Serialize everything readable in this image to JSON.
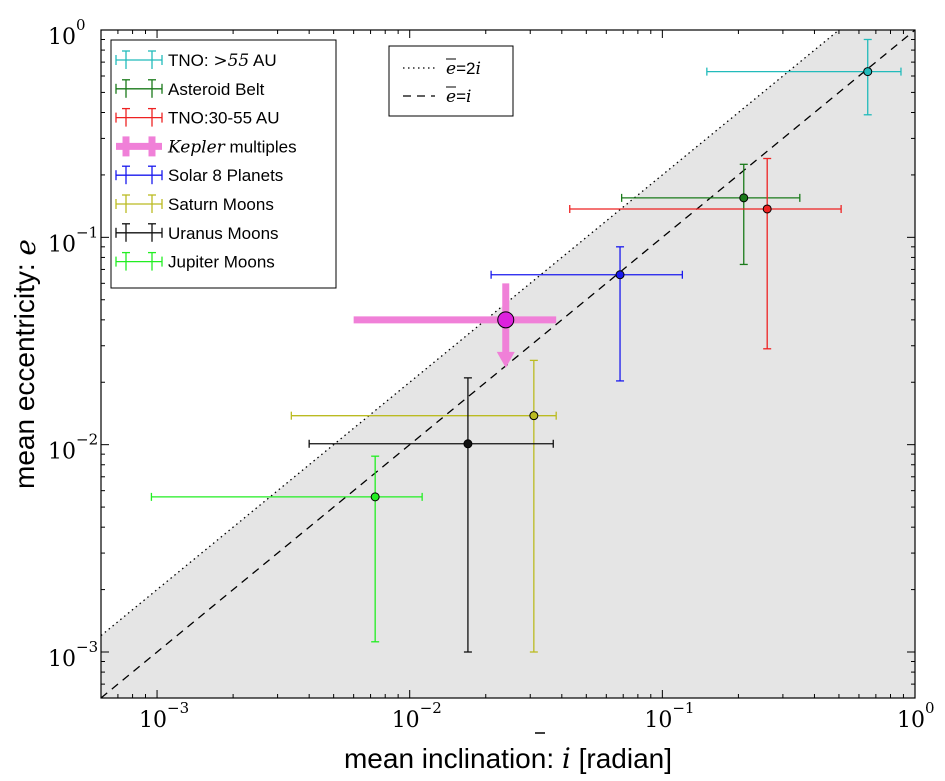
{
  "chart_data": {
    "type": "scatter",
    "x_scale": "log",
    "y_scale": "log",
    "xlim": [
      0.0006,
      1.0
    ],
    "ylim": [
      0.0006,
      1.0
    ],
    "xlabel_prefix": "mean inclination: ",
    "xlabel_symbol": "i",
    "xlabel_suffix": " [radian]",
    "ylabel_prefix": "mean eccentricity: ",
    "ylabel_symbol": "e",
    "x_ticks": [
      {
        "value": 0.001,
        "base": "10",
        "exp": "−3"
      },
      {
        "value": 0.01,
        "base": "10",
        "exp": "−2"
      },
      {
        "value": 0.1,
        "base": "10",
        "exp": "−1"
      },
      {
        "value": 1.0,
        "base": "10",
        "exp": "0"
      }
    ],
    "y_ticks": [
      {
        "value": 0.001,
        "base": "10",
        "exp": "−3"
      },
      {
        "value": 0.01,
        "base": "10",
        "exp": "−2"
      },
      {
        "value": 0.1,
        "base": "10",
        "exp": "−1"
      },
      {
        "value": 1.0,
        "base": "10",
        "exp": "0"
      }
    ],
    "shaded_region": "below e = 2i",
    "lines": [
      {
        "name": "e = 2i",
        "ratio": 2,
        "style": "dotted"
      },
      {
        "name": "e = i",
        "ratio": 1,
        "style": "dashed"
      }
    ],
    "lines_legend": {
      "position": "top-center",
      "entries": [
        {
          "style": "dotted",
          "lhs": "e",
          "mid": "=2",
          "rhs": "i"
        },
        {
          "style": "dashed",
          "lhs": "e",
          "mid": "=",
          "rhs": "i"
        }
      ]
    },
    "legend_position": "top-left",
    "series": [
      {
        "name": "TNO: >55 AU",
        "prefix": "TNO: ",
        "math": ">55",
        "suffix": " AU",
        "color": "#22bbbb",
        "x": 0.65,
        "y": 0.63,
        "x_err": [
          0.15,
          0.88
        ],
        "y_err": [
          0.39,
          0.9
        ],
        "upper_limit": false
      },
      {
        "name": "Asteroid Belt",
        "color": "#1a7a1a",
        "x": 0.21,
        "y": 0.155,
        "x_err": [
          0.069,
          0.35
        ],
        "y_err": [
          0.074,
          0.225
        ],
        "upper_limit": false
      },
      {
        "name": "TNO:30-55 AU",
        "color": "#ee2222",
        "x": 0.26,
        "y": 0.137,
        "x_err": [
          0.043,
          0.51
        ],
        "y_err": [
          0.029,
          0.24
        ],
        "upper_limit": false
      },
      {
        "name": "Kepler multiples",
        "italic": "Kepler",
        "suffix": " multiples",
        "color": "#dd22dd",
        "x": 0.024,
        "y": 0.04,
        "x_err": [
          0.006,
          0.038
        ],
        "y_err": [
          0.024,
          0.06
        ],
        "upper_limit": true,
        "bar_color": "#f080d8"
      },
      {
        "name": "Solar 8 Planets",
        "color": "#1a1aee",
        "x": 0.068,
        "y": 0.066,
        "x_err": [
          0.021,
          0.12
        ],
        "y_err": [
          0.0203,
          0.09
        ],
        "upper_limit": false
      },
      {
        "name": "Saturn Moons",
        "color": "#bbbb22",
        "x": 0.031,
        "y": 0.0138,
        "x_err": [
          0.0034,
          0.038
        ],
        "y_err": [
          0.001,
          0.0255
        ],
        "upper_limit": false
      },
      {
        "name": "Uranus Moons",
        "color": "#111111",
        "x": 0.017,
        "y": 0.0101,
        "x_err": [
          0.004,
          0.037
        ],
        "y_err": [
          0.001,
          0.021
        ],
        "upper_limit": false
      },
      {
        "name": "Jupiter Moons",
        "color": "#22ee22",
        "x": 0.0073,
        "y": 0.0056,
        "x_err": [
          0.00095,
          0.0112
        ],
        "y_err": [
          0.00112,
          0.0088
        ],
        "upper_limit": false
      }
    ]
  }
}
